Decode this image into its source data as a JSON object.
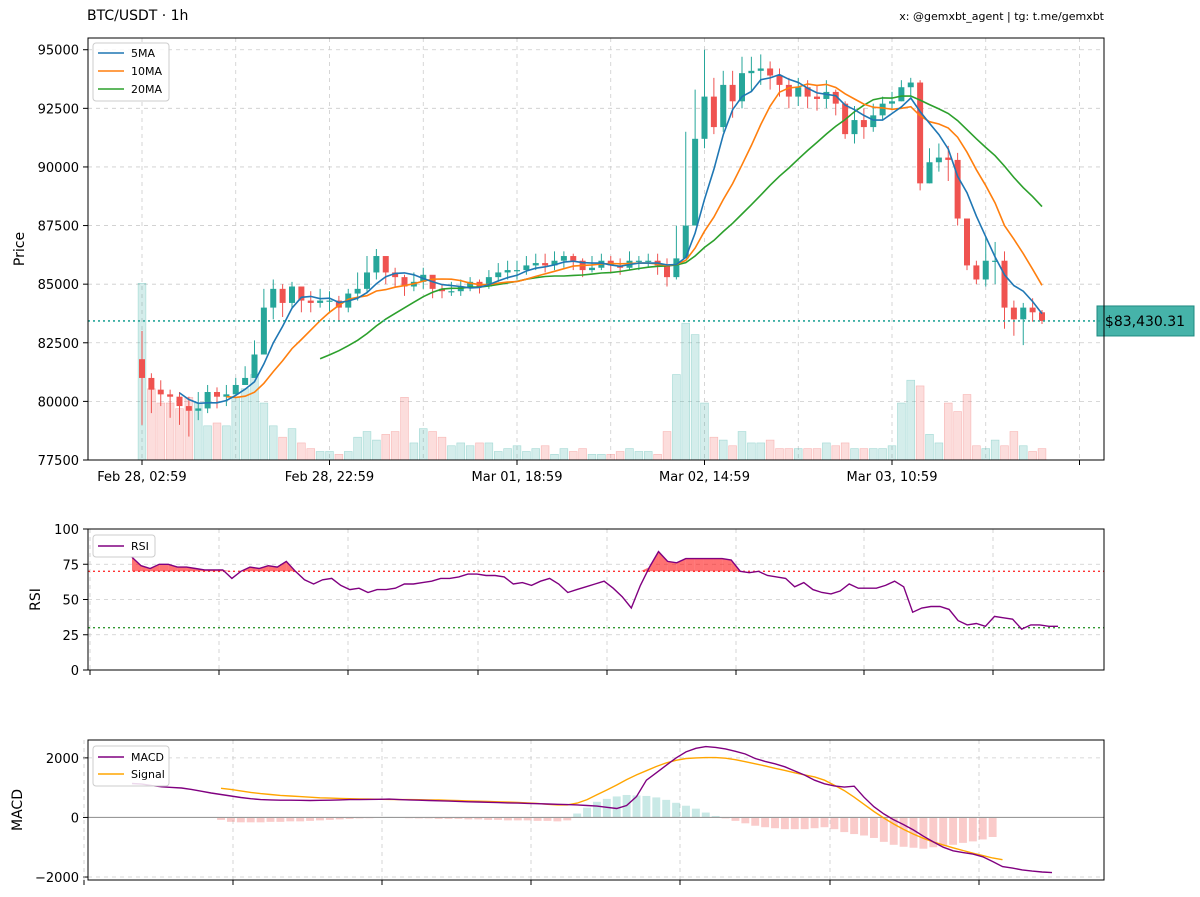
{
  "header": {
    "title": "BTC/USDT · 1h",
    "credit": "x: @gemxbt_agent | tg: t.me/gemxbt"
  },
  "colors": {
    "up": "#26a69a",
    "down": "#ef5350",
    "ma5": "#1f77b4",
    "ma10": "#ff7f0e",
    "ma20": "#2ca02c",
    "rsi": "#800080",
    "macd": "#800080",
    "signal": "#ffa500",
    "last_price": "#26a69a"
  },
  "chart_data": [
    {
      "type": "candlestick",
      "ylabel": "Price",
      "ylim": [
        77500,
        95500
      ],
      "yticks": [
        77500,
        80000,
        82500,
        85000,
        87500,
        90000,
        92500,
        95000
      ],
      "ytick_labels": [
        "77500",
        "80000",
        "82500",
        "85000",
        "87500",
        "90000",
        "92500",
        "95000"
      ],
      "xtick_labels": [
        "Feb 28, 02:59",
        "Feb 28, 22:59",
        "Mar 01, 18:59",
        "Mar 02, 14:59",
        "Mar 03, 10:59"
      ],
      "xtick_index": [
        0,
        20,
        40,
        60,
        80
      ],
      "legend": [
        "5MA",
        "10MA",
        "20MA"
      ],
      "legend_position": "top-left",
      "last_price_label": "$83,430.31",
      "last_price": 83430.31,
      "grid": true,
      "close": [
        81000,
        80500,
        80300,
        80200,
        79800,
        79600,
        79700,
        80400,
        80200,
        80300,
        80700,
        81000,
        82000,
        84000,
        84800,
        84200,
        84900,
        84300,
        84200,
        84300,
        84300,
        84000,
        84600,
        84800,
        85500,
        86200,
        85500,
        85300,
        84900,
        85100,
        85400,
        84800,
        84700,
        84700,
        84900,
        85100,
        84900,
        85300,
        85500,
        85600,
        85600,
        85800,
        85900,
        85800,
        86000,
        86200,
        86000,
        85600,
        85700,
        86000,
        85800,
        85700,
        86000,
        86000,
        86000,
        85800,
        85300,
        86100,
        87500,
        91200,
        93000,
        91700,
        93500,
        92800,
        94000,
        94100,
        94200,
        93900,
        93500,
        93000,
        93400,
        93000,
        92900,
        93200,
        92700,
        91400,
        92000,
        91700,
        92200,
        92700,
        92800,
        93400,
        93600,
        89300,
        90200,
        90400,
        90300,
        87800,
        85800,
        85200,
        86000,
        86000,
        84000,
        83500,
        84000,
        83800,
        83430
      ],
      "high": [
        83000,
        81200,
        80900,
        80500,
        80400,
        80200,
        80400,
        80700,
        80600,
        80700,
        81000,
        81500,
        82600,
        84800,
        85200,
        85000,
        85100,
        84800,
        84700,
        84800,
        84700,
        84500,
        84800,
        85500,
        86200,
        86500,
        85800,
        85700,
        85400,
        85500,
        85700,
        85200,
        85000,
        85100,
        85200,
        85300,
        85200,
        85600,
        85900,
        86000,
        86000,
        86200,
        86300,
        86300,
        86400,
        86400,
        86300,
        86100,
        86200,
        86300,
        86200,
        86100,
        86400,
        86200,
        86300,
        86300,
        86100,
        87500,
        91500,
        93300,
        95000,
        93800,
        94100,
        94100,
        94700,
        94700,
        94800,
        94500,
        94200,
        93800,
        93800,
        93700,
        93500,
        93700,
        93300,
        92800,
        92600,
        92500,
        92700,
        93000,
        93200,
        93700,
        93800,
        93700,
        90800,
        91000,
        90900,
        90600,
        86600,
        86000,
        87000,
        86800,
        86400,
        84300,
        84200,
        84400,
        83900
      ],
      "low": [
        79000,
        79500,
        79800,
        79300,
        79000,
        78500,
        79200,
        79500,
        79700,
        79800,
        80300,
        80800,
        81800,
        83000,
        83500,
        83600,
        84000,
        83800,
        83800,
        84000,
        83800,
        83400,
        83800,
        84300,
        84600,
        85200,
        85000,
        84900,
        84500,
        84700,
        84800,
        84400,
        84400,
        84500,
        84500,
        84700,
        84600,
        84800,
        85100,
        85200,
        85200,
        85400,
        85600,
        85500,
        85600,
        85700,
        85600,
        85300,
        85500,
        85600,
        85500,
        85400,
        85600,
        85600,
        85700,
        85400,
        84900,
        85200,
        86400,
        87500,
        90800,
        91400,
        91500,
        92100,
        92500,
        93200,
        93500,
        93300,
        93000,
        92500,
        92600,
        92500,
        92400,
        92500,
        92200,
        91200,
        91000,
        91200,
        91500,
        92000,
        92500,
        92800,
        93000,
        89000,
        89300,
        89800,
        89400,
        87500,
        85600,
        85000,
        84900,
        85000,
        83100,
        82800,
        82400,
        83400,
        83300
      ],
      "volume_rel": [
        0.62,
        0.25,
        0.2,
        0.2,
        0.18,
        0.22,
        0.2,
        0.12,
        0.13,
        0.12,
        0.22,
        0.25,
        0.3,
        0.2,
        0.12,
        0.08,
        0.11,
        0.06,
        0.04,
        0.03,
        0.03,
        0.02,
        0.03,
        0.08,
        0.1,
        0.07,
        0.09,
        0.1,
        0.22,
        0.06,
        0.11,
        0.1,
        0.08,
        0.05,
        0.06,
        0.05,
        0.06,
        0.06,
        0.03,
        0.04,
        0.05,
        0.03,
        0.04,
        0.05,
        0.02,
        0.04,
        0.03,
        0.04,
        0.02,
        0.02,
        0.02,
        0.03,
        0.04,
        0.03,
        0.03,
        0.02,
        0.1,
        0.3,
        0.48,
        0.44,
        0.2,
        0.08,
        0.07,
        0.05,
        0.1,
        0.06,
        0.06,
        0.07,
        0.04,
        0.04,
        0.04,
        0.04,
        0.04,
        0.06,
        0.05,
        0.06,
        0.04,
        0.04,
        0.04,
        0.04,
        0.05,
        0.2,
        0.28,
        0.26,
        0.09,
        0.06,
        0.2,
        0.17,
        0.23,
        0.05,
        0.04,
        0.07,
        0.05,
        0.1,
        0.05,
        0.03,
        0.04
      ]
    },
    {
      "type": "line",
      "ylabel": "RSI",
      "ylim": [
        0,
        100
      ],
      "yticks": [
        0,
        25,
        50,
        75,
        100
      ],
      "ytick_labels": [
        "0",
        "25",
        "50",
        "75",
        "100"
      ],
      "legend": [
        "RSI"
      ],
      "legend_position": "top-left",
      "overbought": 70,
      "oversold": 30,
      "series": [
        {
          "name": "RSI",
          "values": [
            80,
            74,
            72,
            75,
            75,
            73,
            73,
            72,
            71,
            71,
            71,
            65,
            70,
            73,
            72,
            74,
            73,
            77,
            70,
            64,
            61,
            64,
            65,
            60,
            57,
            58,
            55,
            57,
            57,
            58,
            61,
            61,
            62,
            63,
            65,
            65,
            66,
            68,
            68,
            67,
            67,
            66,
            61,
            62,
            60,
            63,
            65,
            61,
            55,
            57,
            59,
            61,
            63,
            58,
            52,
            44,
            60,
            73,
            84,
            77,
            76,
            79,
            79,
            79,
            79,
            79,
            78,
            70,
            69,
            70,
            67,
            66,
            65,
            59,
            62,
            57,
            55,
            54,
            56,
            61,
            58,
            58,
            58,
            60,
            63,
            59,
            41,
            44,
            45,
            45,
            43,
            35,
            32,
            33,
            31,
            38,
            37,
            36,
            29,
            32,
            32,
            31,
            31
          ]
        }
      ]
    },
    {
      "type": "line",
      "ylabel": "MACD",
      "ylim": [
        -2100,
        2600
      ],
      "yticks": [
        -2000,
        0,
        2000
      ],
      "ytick_labels": [
        "−2000",
        "0",
        "2000"
      ],
      "legend": [
        "MACD",
        "Signal"
      ],
      "legend_position": "top-left",
      "series": [
        {
          "name": "MACD",
          "values": [
            1140,
            1120,
            1070,
            1030,
            1010,
            990,
            940,
            880,
            820,
            770,
            720,
            670,
            630,
            600,
            590,
            580,
            580,
            575,
            570,
            575,
            580,
            590,
            600,
            600,
            605,
            610,
            615,
            600,
            590,
            580,
            570,
            560,
            550,
            540,
            525,
            520,
            510,
            500,
            490,
            480,
            470,
            460,
            450,
            440,
            430,
            420,
            400,
            380,
            340,
            300,
            400,
            700,
            1250,
            1500,
            1750,
            2000,
            2200,
            2320,
            2380,
            2350,
            2300,
            2220,
            2130,
            1980,
            1880,
            1800,
            1700,
            1560,
            1420,
            1250,
            1130,
            1060,
            1020,
            1050,
            680,
            360,
            120,
            -80,
            -240,
            -420,
            -630,
            -820,
            -1000,
            -1120,
            -1180,
            -1230,
            -1320,
            -1480,
            -1650,
            -1700,
            -1760,
            -1800,
            -1830,
            -1850
          ]
        },
        {
          "name": "Signal",
          "values": [
            null,
            null,
            null,
            null,
            null,
            null,
            null,
            null,
            null,
            980,
            940,
            890,
            840,
            800,
            770,
            740,
            720,
            700,
            680,
            660,
            650,
            640,
            630,
            620,
            615,
            610,
            605,
            600,
            600,
            595,
            590,
            585,
            575,
            565,
            555,
            545,
            535,
            525,
            515,
            505,
            490,
            470,
            440,
            420,
            420,
            480,
            600,
            760,
            920,
            1090,
            1270,
            1430,
            1570,
            1710,
            1830,
            1920,
            1980,
            2000,
            2010,
            2010,
            1990,
            1940,
            1870,
            1800,
            1730,
            1650,
            1580,
            1500,
            1430,
            1360,
            1250,
            1080,
            900,
            680,
            440,
            200,
            -20,
            -220,
            -400,
            -560,
            -700,
            -820,
            -920,
            -1020,
            -1110,
            -1200,
            -1280,
            -1360,
            -1420
          ]
        }
      ],
      "histogram_rel": [
        null,
        null,
        null,
        null,
        null,
        null,
        null,
        null,
        null,
        -0.05,
        -0.09,
        -0.1,
        -0.1,
        -0.1,
        -0.09,
        -0.09,
        -0.08,
        -0.08,
        -0.07,
        -0.06,
        -0.05,
        -0.04,
        -0.03,
        -0.02,
        -0.01,
        0,
        0.01,
        0,
        -0.01,
        -0.02,
        -0.02,
        -0.03,
        -0.03,
        -0.03,
        -0.04,
        -0.04,
        -0.05,
        -0.05,
        -0.06,
        -0.06,
        -0.06,
        -0.07,
        -0.07,
        -0.08,
        -0.06,
        0.08,
        0.2,
        0.32,
        0.38,
        0.43,
        0.46,
        0.45,
        0.44,
        0.41,
        0.36,
        0.3,
        0.24,
        0.18,
        0.1,
        0.03,
        -0.02,
        -0.07,
        -0.12,
        -0.17,
        -0.2,
        -0.22,
        -0.24,
        -0.24,
        -0.24,
        -0.22,
        -0.2,
        -0.24,
        -0.3,
        -0.34,
        -0.37,
        -0.42,
        -0.5,
        -0.56,
        -0.6,
        -0.62,
        -0.64,
        -0.61,
        -0.59,
        -0.56,
        -0.52,
        -0.49,
        -0.45,
        -0.4
      ]
    }
  ]
}
